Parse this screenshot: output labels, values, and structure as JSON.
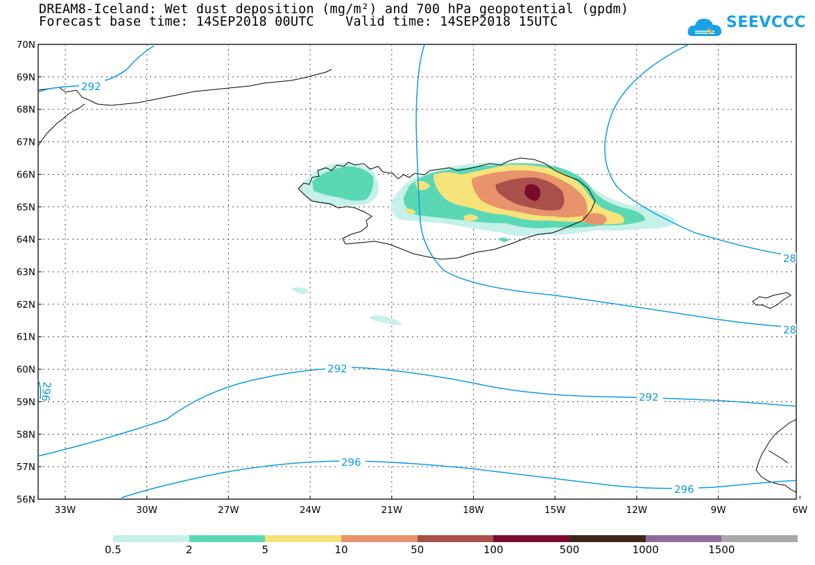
{
  "title": {
    "line1": "DREAM8-Iceland: Wet dust deposition (mg/m²) and 700 hPa geopotential (gpdm)",
    "line2": "Forecast base time: 14SEP2018 00UTC    Valid time: 14SEP2018 15UTC"
  },
  "logo": {
    "text": "SEEVCCC",
    "icon": "cloud-icon",
    "color": "#1aa0e6"
  },
  "map": {
    "lon_labels": [
      "33W",
      "30W",
      "27W",
      "24W",
      "21W",
      "18W",
      "15W",
      "12W",
      "9W",
      "6W"
    ],
    "lat_labels": [
      "70N",
      "69N",
      "68N",
      "67N",
      "66N",
      "65N",
      "64N",
      "63N",
      "62N",
      "61N",
      "60N",
      "59N",
      "58N",
      "57N",
      "56N"
    ],
    "contour_labels": [
      "292",
      "292",
      "292",
      "296",
      "296",
      "28",
      "28",
      "296"
    ],
    "contour_color": "#0a9be4"
  },
  "legend": {
    "colors": [
      "#c6f0ea",
      "#5ad8b4",
      "#f6e37a",
      "#e9936d",
      "#a9504a",
      "#7a0b2f",
      "#3d2615",
      "#8e6a9c",
      "#a8a8a8"
    ],
    "labels": [
      "0.5",
      "2",
      "5",
      "10",
      "50",
      "100",
      "500",
      "1000",
      "1500"
    ]
  }
}
